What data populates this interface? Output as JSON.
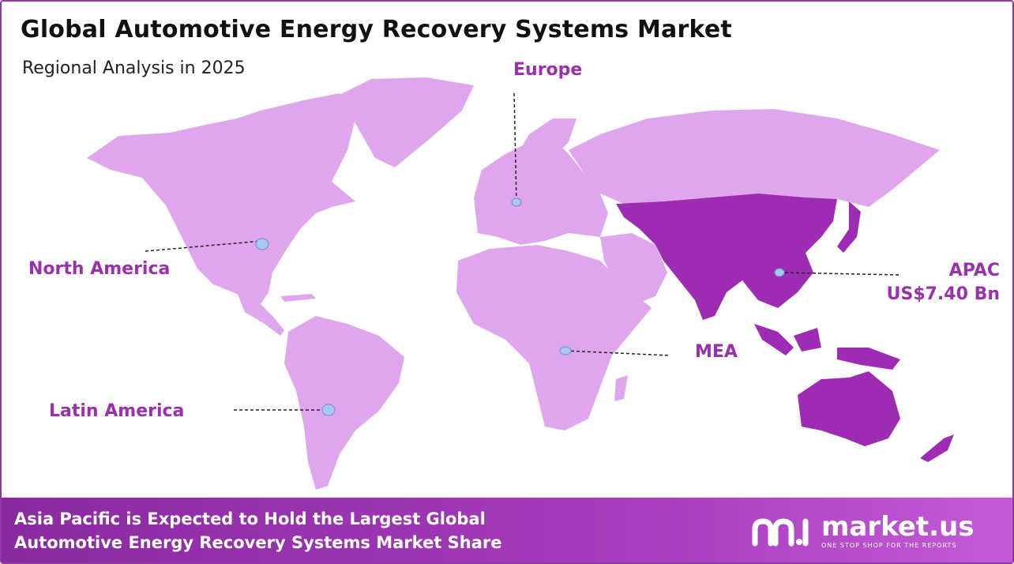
{
  "title": "Global Automotive Energy Recovery Systems Market",
  "subtitle": "Regional Analysis in 2025",
  "regions": {
    "europe": "Europe",
    "north_america": "North America",
    "latin_america": "Latin America",
    "mea": "MEA",
    "apac": "APAC",
    "apac_value": "US$7.40 Bn"
  },
  "highlighted_region": "APAC",
  "colors": {
    "land": "#dfa6ee",
    "highlight": "#9e2bb3",
    "label": "#9b2fae",
    "marker": "#a9c7f0",
    "footer": "#9b32b0"
  },
  "footer": {
    "line1": "Asia Pacific is Expected to Hold the Largest Global",
    "line2": "Automotive Energy Recovery Systems Market Share"
  },
  "brand": {
    "name": "market.us",
    "tagline": "ONE STOP SHOP FOR THE REPORTS"
  }
}
